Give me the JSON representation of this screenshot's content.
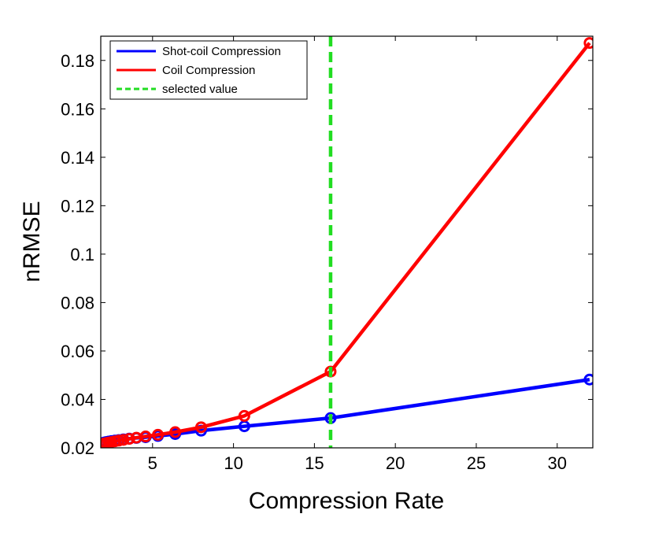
{
  "chart_data": {
    "type": "line",
    "title": "",
    "xlabel": "Compression Rate",
    "ylabel": "nRMSE",
    "xlim": [
      1.8,
      32.2
    ],
    "ylim": [
      0.02,
      0.19
    ],
    "xticks": [
      5,
      10,
      15,
      20,
      25,
      30
    ],
    "yticks": [
      0.02,
      0.04,
      0.06,
      0.08,
      0.1,
      0.12,
      0.14,
      0.16,
      0.18
    ],
    "xtick_labels": [
      "5",
      "10",
      "15",
      "20",
      "25",
      "30"
    ],
    "ytick_labels": [
      "0.02",
      "0.04",
      "0.06",
      "0.08",
      "0.1",
      "0.12",
      "0.14",
      "0.16",
      "0.18"
    ],
    "grid": false,
    "legend_position": "top-left",
    "series": [
      {
        "name": "Shot-coil Compression",
        "color": "#0000ff",
        "marker": "circle",
        "x": [
          2.0,
          2.13,
          2.29,
          2.46,
          2.67,
          2.91,
          3.2,
          3.56,
          4.0,
          4.57,
          5.33,
          6.4,
          8.0,
          10.67,
          16.0,
          32.0
        ],
        "y": [
          0.0222,
          0.0224,
          0.0226,
          0.0228,
          0.023,
          0.0232,
          0.0235,
          0.0238,
          0.0241,
          0.0244,
          0.0249,
          0.0257,
          0.0271,
          0.0289,
          0.0323,
          0.0482
        ]
      },
      {
        "name": "Coil Compression",
        "color": "#ff0000",
        "marker": "circle",
        "x": [
          2.0,
          2.13,
          2.29,
          2.46,
          2.67,
          2.91,
          3.2,
          3.56,
          4.0,
          4.57,
          5.33,
          6.4,
          8.0,
          10.67,
          16.0,
          32.0
        ],
        "y": [
          0.0218,
          0.022,
          0.0222,
          0.0224,
          0.0227,
          0.023,
          0.0233,
          0.0237,
          0.0242,
          0.0247,
          0.0254,
          0.0265,
          0.0285,
          0.0332,
          0.0515,
          0.1872
        ]
      }
    ],
    "vertical_line": {
      "name": "selected value",
      "x": 16.0,
      "color": "#22dd22",
      "style": "dashed"
    }
  }
}
